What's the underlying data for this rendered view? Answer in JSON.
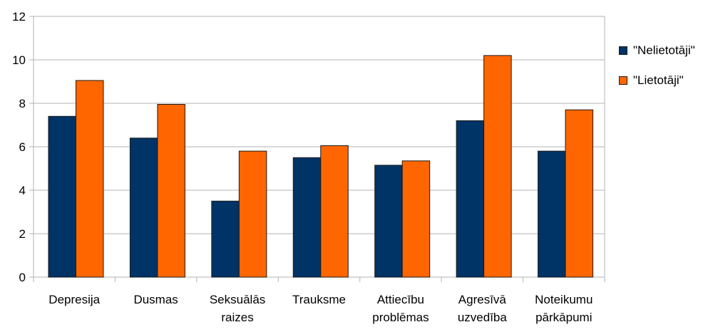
{
  "chart_data": {
    "type": "bar",
    "categories": [
      [
        "Depresija"
      ],
      [
        "Dusmas"
      ],
      [
        "Seksuālās",
        "raizes"
      ],
      [
        "Trauksme"
      ],
      [
        "Attiecību",
        "problēmas"
      ],
      [
        "Agresīvā",
        "uzvedība"
      ],
      [
        "Noteikumu",
        "pārkāpumi"
      ]
    ],
    "series": [
      {
        "name": "\"Nelietotāji\"",
        "color": "#003366",
        "values": [
          7.4,
          6.4,
          3.5,
          5.5,
          5.15,
          7.2,
          5.8
        ]
      },
      {
        "name": "\"Lietotāji\"",
        "color": "#ff6600",
        "values": [
          9.05,
          7.95,
          5.8,
          6.05,
          5.35,
          10.2,
          7.7
        ]
      }
    ],
    "ylim": [
      0,
      12
    ],
    "yticks": [
      0,
      2,
      4,
      6,
      8,
      10,
      12
    ],
    "grid": true,
    "legend_position": "right"
  }
}
